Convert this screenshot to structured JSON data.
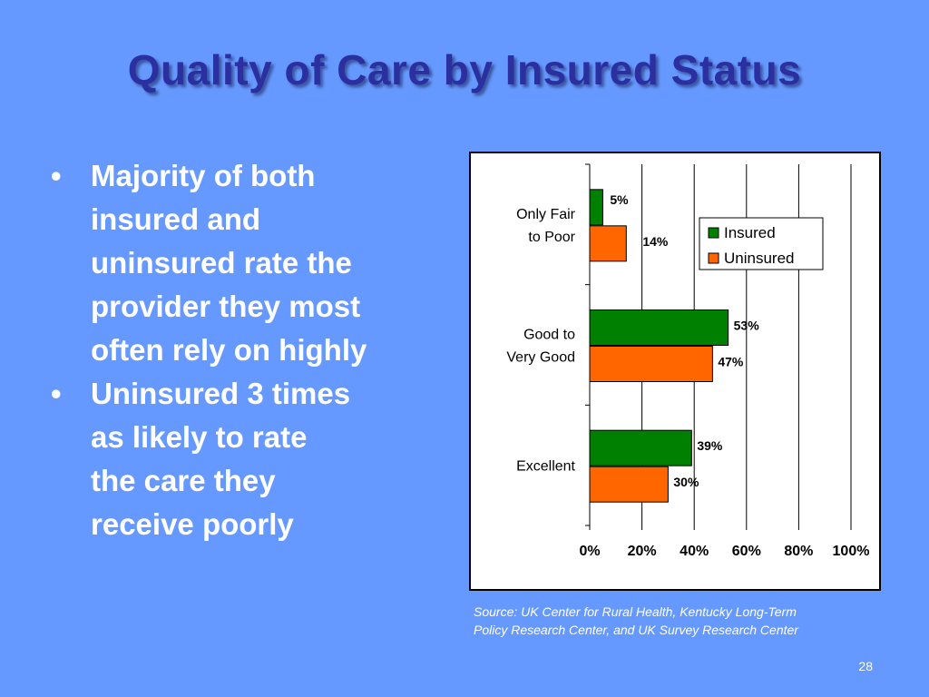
{
  "slide": {
    "title": "Quality of Care by Insured Status",
    "bullets": [
      {
        "lines": [
          "Majority of both",
          "insured and",
          "uninsured rate the",
          "provider they most",
          "often rely on highly"
        ]
      },
      {
        "lines": [
          "Uninsured 3 times",
          "as likely to rate",
          "the care they",
          "receive poorly"
        ]
      }
    ],
    "bullet_glyph": "•",
    "source_lines": [
      "Source: UK Center for Rural Health, Kentucky Long-Term",
      "Policy Research Center, and UK Survey Research Center"
    ],
    "page_number": "28"
  },
  "colors": {
    "background": "#6699FF",
    "title": "#2B2FA0",
    "insured": "#008000",
    "uninsured": "#FF6600"
  },
  "chart_data": {
    "type": "bar",
    "orientation": "horizontal",
    "categories": [
      {
        "lines": [
          "Only Fair",
          "to Poor"
        ]
      },
      {
        "lines": [
          "Good to",
          "Very Good"
        ]
      },
      {
        "lines": [
          "Excellent"
        ]
      }
    ],
    "series": [
      {
        "name": "Insured",
        "color": "#008000",
        "values": [
          5,
          53,
          39
        ],
        "labels": [
          "5%",
          "53%",
          "39%"
        ]
      },
      {
        "name": "Uninsured",
        "color": "#FF6600",
        "values": [
          14,
          47,
          30
        ],
        "labels": [
          "14%",
          "47%",
          "30%"
        ]
      }
    ],
    "x_ticks": [
      "0%",
      "20%",
      "40%",
      "60%",
      "80%",
      "100%"
    ],
    "xlim": [
      0,
      100
    ],
    "grid": "vertical",
    "legend_position": "top-right"
  }
}
